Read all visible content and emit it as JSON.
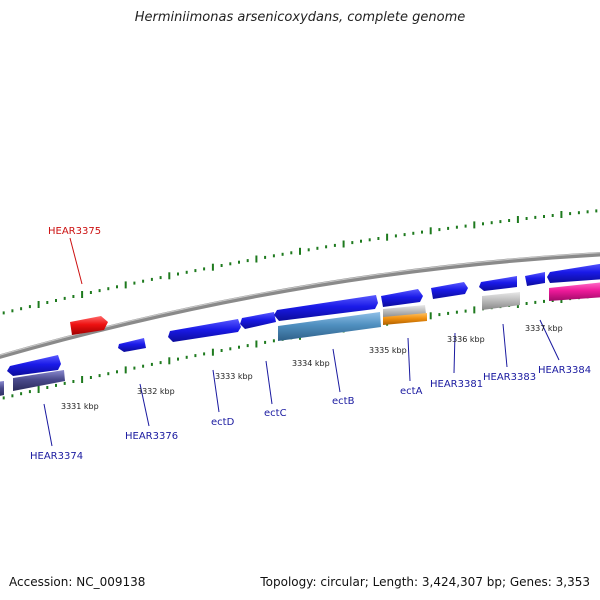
{
  "title": "Herminiimonas arsenicoxydans, complete genome",
  "footer": {
    "accession": "Accession: NC_009138",
    "summary": "Topology: circular; Length: 3,424,307 bp; Genes: 3,353"
  },
  "colors": {
    "backbone": "#8a8a8a",
    "tick": "#1e7a1e",
    "label_blue": "#1a1aa0",
    "label_red": "#cc1111",
    "gene_blue": "#1a1ae0",
    "gene_red": "#ee1111",
    "gene_navy": "#4a4a8c",
    "gene_steel": "#4f8fbf",
    "gene_orange": "#f09010",
    "gene_gray": "#bdbdbd",
    "gene_pink": "#ee1a9a"
  },
  "kbp_labels": [
    "3331 kbp",
    "3332 kbp",
    "3333 kbp",
    "3334 kbp",
    "3335 kbp",
    "3336 kbp",
    "3337 kbp"
  ],
  "genes": [
    {
      "name": "HEAR3374",
      "color": "label_blue"
    },
    {
      "name": "HEAR3375",
      "color": "label_red"
    },
    {
      "name": "HEAR3376",
      "color": "label_blue"
    },
    {
      "name": "ectD",
      "color": "label_blue"
    },
    {
      "name": "ectC",
      "color": "label_blue"
    },
    {
      "name": "ectB",
      "color": "label_blue"
    },
    {
      "name": "ectA",
      "color": "label_blue"
    },
    {
      "name": "HEAR3381",
      "color": "label_blue"
    },
    {
      "name": "HEAR3383",
      "color": "label_blue"
    },
    {
      "name": "HEAR3384",
      "color": "label_blue"
    }
  ]
}
